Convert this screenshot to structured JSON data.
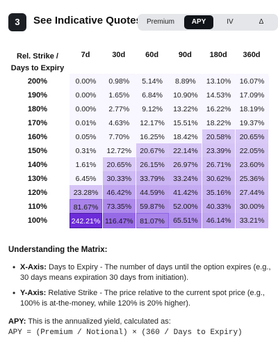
{
  "header": {
    "step_number": "3",
    "title": "See Indicative Quotes",
    "toggle": {
      "options": [
        "Premium",
        "APY",
        "IV",
        "Δ"
      ],
      "selected": "APY"
    }
  },
  "matrix": {
    "corner_label_line1": "Rel. Strike /",
    "corner_label_line2": "Days to Expiry",
    "columns": [
      "7d",
      "30d",
      "60d",
      "90d",
      "180d",
      "360d"
    ],
    "rows": [
      {
        "strike": "200%",
        "values": [
          "0.00%",
          "0.98%",
          "5.14%",
          "8.89%",
          "13.10%",
          "16.07%"
        ]
      },
      {
        "strike": "190%",
        "values": [
          "0.00%",
          "1.65%",
          "6.84%",
          "10.90%",
          "14.53%",
          "17.09%"
        ]
      },
      {
        "strike": "180%",
        "values": [
          "0.00%",
          "2.77%",
          "9.12%",
          "13.22%",
          "16.22%",
          "18.19%"
        ]
      },
      {
        "strike": "170%",
        "values": [
          "0.01%",
          "4.63%",
          "12.17%",
          "15.51%",
          "18.22%",
          "19.37%"
        ]
      },
      {
        "strike": "160%",
        "values": [
          "0.05%",
          "7.70%",
          "16.25%",
          "18.42%",
          "20.58%",
          "20.65%"
        ]
      },
      {
        "strike": "150%",
        "values": [
          "0.31%",
          "12.72%",
          "20.67%",
          "22.14%",
          "23.39%",
          "22.05%"
        ]
      },
      {
        "strike": "140%",
        "values": [
          "1.61%",
          "20.65%",
          "26.15%",
          "26.97%",
          "26.71%",
          "23.60%"
        ]
      },
      {
        "strike": "130%",
        "values": [
          "6.45%",
          "30.33%",
          "33.79%",
          "33.24%",
          "30.62%",
          "25.36%"
        ]
      },
      {
        "strike": "120%",
        "values": [
          "23.28%",
          "46.42%",
          "44.59%",
          "41.42%",
          "35.16%",
          "27.44%"
        ]
      },
      {
        "strike": "110%",
        "values": [
          "81.67%",
          "73.35%",
          "59.87%",
          "52.00%",
          "40.33%",
          "30.00%"
        ]
      },
      {
        "strike": "100%",
        "values": [
          "242.21%",
          "116.47%",
          "81.07%",
          "65.51%",
          "46.14%",
          "33.21%"
        ]
      }
    ],
    "heat_color_low": "#f8f6ff",
    "heat_color_high": "#6c2bd9"
  },
  "explanation": {
    "title": "Understanding the Matrix:",
    "bullets": [
      {
        "term": "X-Axis:",
        "text": "Days to Expiry - The number of days until the option expires (e.g., 30 days means expiration 30 days from initiation)."
      },
      {
        "term": "Y-Axis:",
        "text": "Relative Strike - The price relative to the current spot price (e.g., 100% is at-the-money, while 120% is 20% higher)."
      }
    ],
    "apy_term": "APY:",
    "apy_text": "This is the annualized yield, calculated as:",
    "formula": "APY = (Premium / Notional) × (360 / Days to Expiry)"
  }
}
